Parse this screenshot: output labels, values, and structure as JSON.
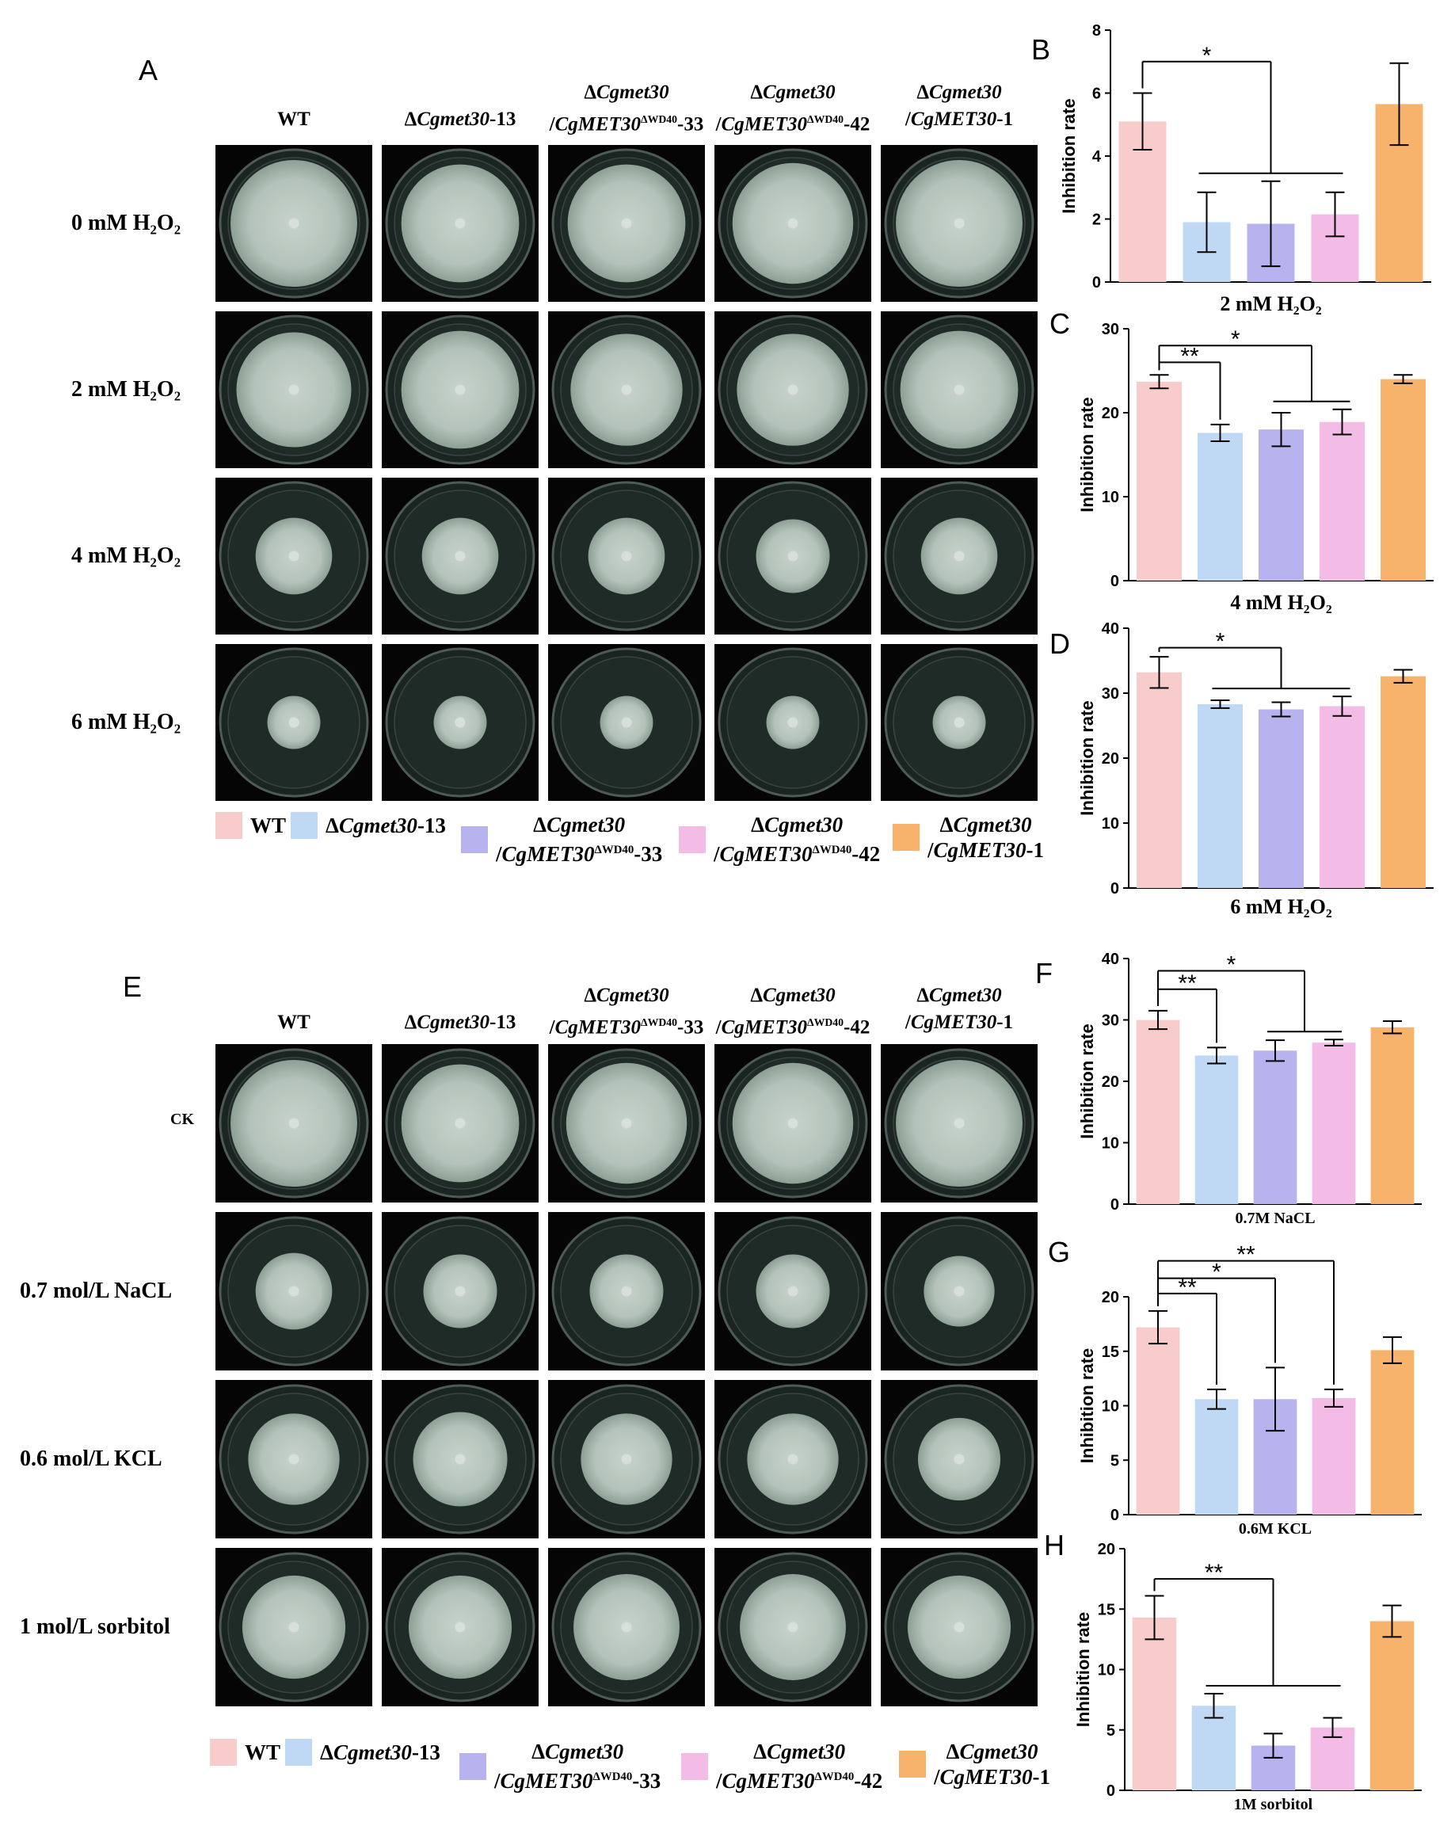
{
  "panels": {
    "A": "A",
    "B": "B",
    "C": "C",
    "D": "D",
    "E": "E",
    "F": "F",
    "G": "G",
    "H": "H"
  },
  "strains": [
    {
      "id": "wt",
      "l1": "",
      "l2": "WT",
      "color": "#f9cccc"
    },
    {
      "id": "d13",
      "l1": "",
      "l2": "ΔCgmet30-13",
      "color": "#bfd8f3"
    },
    {
      "id": "wd33",
      "l1": "ΔCgmet30",
      "l2": "/CgMET30ΔWD40-33",
      "color": "#b7b3ef"
    },
    {
      "id": "wd42",
      "l1": "ΔCgmet30",
      "l2": "/CgMET30ΔWD40-42",
      "color": "#f3bce6"
    },
    {
      "id": "c1",
      "l1": "ΔCgmet30",
      "l2": "/CgMET30-1",
      "color": "#f7b36c"
    }
  ],
  "gridA": {
    "headers": [
      {
        "l1": "",
        "l2": "WT"
      },
      {
        "l1": "",
        "l2": "ΔCgmet30-13"
      },
      {
        "l1": "ΔCgmet30",
        "l2": "/CgMET30ΔWD40-33"
      },
      {
        "l1": "ΔCgmet30",
        "l2": "/CgMET30ΔWD40-42"
      },
      {
        "l1": "ΔCgmet30",
        "l2": "/CgMET30-1"
      }
    ],
    "rows": [
      "0 mM H₂O₂",
      "2 mM H₂O₂",
      "4 mM H₂O₂",
      "6 mM H₂O₂"
    ],
    "colony": [
      [
        0.86,
        0.8,
        0.8,
        0.82,
        0.86
      ],
      [
        0.78,
        0.8,
        0.76,
        0.76,
        0.8
      ],
      [
        0.52,
        0.52,
        0.52,
        0.5,
        0.52
      ],
      [
        0.36,
        0.36,
        0.36,
        0.36,
        0.36
      ]
    ]
  },
  "gridE": {
    "headers": [
      {
        "l1": "",
        "l2": "WT"
      },
      {
        "l1": "",
        "l2": "ΔCgmet30-13"
      },
      {
        "l1": "ΔCgmet30",
        "l2": "/CgMET30ΔWD40-33"
      },
      {
        "l1": "ΔCgmet30",
        "l2": "/CgMET30ΔWD40-42"
      },
      {
        "l1": "ΔCgmet30",
        "l2": "/CgMET30-1"
      }
    ],
    "rows": [
      "CK",
      "0.7 mol/L NaCL",
      "0.6 mol/L KCL",
      "1 mol/L sorbitol"
    ],
    "colony": [
      [
        0.86,
        0.8,
        0.82,
        0.82,
        0.86
      ],
      [
        0.52,
        0.5,
        0.5,
        0.5,
        0.48
      ],
      [
        0.62,
        0.64,
        0.62,
        0.62,
        0.56
      ],
      [
        0.7,
        0.7,
        0.72,
        0.72,
        0.7
      ]
    ]
  },
  "chart_data": [
    {
      "id": "B",
      "type": "bar",
      "title": "",
      "xlabel": "2 mM H₂O₂",
      "ylabel": "Inhibition rate",
      "categories": [
        "WT",
        "ΔCgmet30-13",
        "ΔCgmet30/CgMET30ΔWD40-33",
        "ΔCgmet30/CgMET30ΔWD40-42",
        "ΔCgmet30/CgMET30-1"
      ],
      "values": [
        5.1,
        1.9,
        1.85,
        2.15,
        5.65
      ],
      "errors": [
        0.9,
        0.95,
        1.35,
        0.7,
        1.3
      ],
      "ylim": [
        0,
        8
      ],
      "yticks": [
        0,
        2,
        4,
        6,
        8
      ],
      "sig": [
        {
          "label": "*",
          "from": 0,
          "to": [
            1,
            2,
            3
          ],
          "level": 7.0
        }
      ]
    },
    {
      "id": "C",
      "type": "bar",
      "title": "",
      "xlabel": "4 mM H₂O₂",
      "ylabel": "Inhibition rate",
      "categories": [
        "WT",
        "ΔCgmet30-13",
        "ΔCgmet30/CgMET30ΔWD40-33",
        "ΔCgmet30/CgMET30ΔWD40-42",
        "ΔCgmet30/CgMET30-1"
      ],
      "values": [
        23.7,
        17.6,
        18.0,
        18.9,
        24.0
      ],
      "errors": [
        0.8,
        1.0,
        2.0,
        1.5,
        0.5
      ],
      "ylim": [
        0,
        30
      ],
      "yticks": [
        0,
        10,
        20,
        30
      ],
      "sig": [
        {
          "label": "**",
          "from": 0,
          "to": [
            1
          ],
          "level": 26.0
        },
        {
          "label": "*",
          "from": 0,
          "to": [
            2,
            3
          ],
          "level": 28.0
        }
      ]
    },
    {
      "id": "D",
      "type": "bar",
      "title": "",
      "xlabel": "6 mM H₂O₂",
      "ylabel": "Inhibition rate",
      "categories": [
        "WT",
        "ΔCgmet30-13",
        "ΔCgmet30/CgMET30ΔWD40-33",
        "ΔCgmet30/CgMET30ΔWD40-42",
        "ΔCgmet30/CgMET30-1"
      ],
      "values": [
        33.2,
        28.3,
        27.5,
        28.0,
        32.6
      ],
      "errors": [
        2.4,
        0.6,
        1.1,
        1.5,
        1.0
      ],
      "ylim": [
        0,
        40
      ],
      "yticks": [
        0,
        10,
        20,
        30,
        40
      ],
      "sig": [
        {
          "label": "*",
          "from": 0,
          "to": [
            1,
            2,
            3
          ],
          "level": 37.0
        }
      ]
    },
    {
      "id": "F",
      "type": "bar",
      "title": "",
      "xlabel": "0.7M NaCL",
      "ylabel": "Inhibition rate",
      "categories": [
        "WT",
        "ΔCgmet30-13",
        "ΔCgmet30/CgMET30ΔWD40-33",
        "ΔCgmet30/CgMET30ΔWD40-42",
        "ΔCgmet30/CgMET30-1"
      ],
      "values": [
        30.0,
        24.2,
        25.0,
        26.3,
        28.8
      ],
      "errors": [
        1.5,
        1.3,
        1.7,
        0.5,
        1.0
      ],
      "ylim": [
        0,
        40
      ],
      "yticks": [
        0,
        10,
        20,
        30,
        40
      ],
      "sig": [
        {
          "label": "**",
          "from": 0,
          "to": [
            1
          ],
          "level": 35.0
        },
        {
          "label": "*",
          "from": 0,
          "to": [
            2,
            3
          ],
          "level": 38.0
        }
      ]
    },
    {
      "id": "G",
      "type": "bar",
      "title": "",
      "xlabel": "0.6M KCL",
      "ylabel": "Inhibition rate",
      "categories": [
        "WT",
        "ΔCgmet30-13",
        "ΔCgmet30/CgMET30ΔWD40-33",
        "ΔCgmet30/CgMET30ΔWD40-42",
        "ΔCgmet30/CgMET30-1"
      ],
      "values": [
        17.2,
        10.6,
        10.6,
        10.7,
        15.1
      ],
      "errors": [
        1.5,
        0.9,
        2.9,
        0.8,
        1.2
      ],
      "ylim": [
        0,
        20
      ],
      "yticks": [
        0,
        5,
        10,
        15,
        20
      ],
      "sig": [
        {
          "label": "**",
          "from": 0,
          "to": [
            1
          ],
          "level": 20.3
        },
        {
          "label": "*",
          "from": 0,
          "to": [
            2
          ],
          "level": 21.7
        },
        {
          "label": "**",
          "from": 0,
          "to": [
            3
          ],
          "level": 23.3
        }
      ]
    },
    {
      "id": "H",
      "type": "bar",
      "title": "",
      "xlabel": "1M sorbitol",
      "ylabel": "Inhibition rate",
      "categories": [
        "WT",
        "ΔCgmet30-13",
        "ΔCgmet30/CgMET30ΔWD40-33",
        "ΔCgmet30/CgMET30ΔWD40-42",
        "ΔCgmet30/CgMET30-1"
      ],
      "values": [
        14.3,
        7.0,
        3.7,
        5.2,
        14.0
      ],
      "errors": [
        1.8,
        1.0,
        1.0,
        0.8,
        1.3
      ],
      "ylim": [
        0,
        20
      ],
      "yticks": [
        0,
        5,
        10,
        15,
        20
      ],
      "sig": [
        {
          "label": "**",
          "from": 0,
          "to": [
            1,
            2,
            3
          ],
          "level": 17.5
        }
      ]
    }
  ]
}
